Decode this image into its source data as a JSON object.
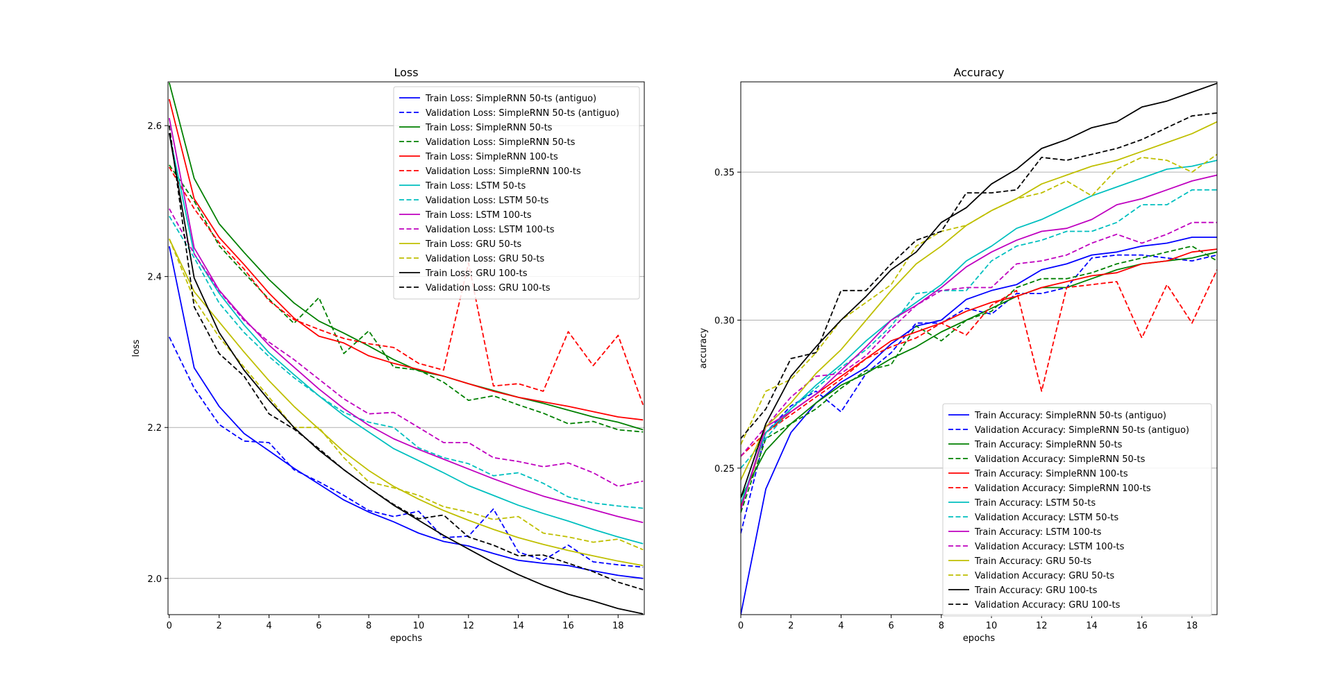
{
  "chart_data": [
    {
      "type": "line",
      "title": "Loss",
      "xlabel": "epochs",
      "ylabel": "loss",
      "xlim": [
        -0.05,
        19.05
      ],
      "ylim": [
        1.952,
        2.658
      ],
      "xticks": [
        0,
        2,
        4,
        6,
        8,
        10,
        12,
        14,
        16,
        18
      ],
      "yticks": [
        2.0,
        2.2,
        2.4,
        2.6
      ],
      "ytick_labels": [
        "2.0",
        "2.2",
        "2.4",
        "2.6"
      ],
      "grid": "y",
      "legend_position": "top-right",
      "x": [
        0,
        1,
        2,
        3,
        4,
        5,
        6,
        7,
        8,
        9,
        10,
        11,
        12,
        13,
        14,
        15,
        16,
        17,
        18,
        19
      ],
      "series": [
        {
          "name": "Train Loss: SimpleRNN 50-ts (antiguo)",
          "color": "#0000ff",
          "dash": "solid",
          "values": [
            2.44,
            2.279,
            2.228,
            2.192,
            2.169,
            2.146,
            2.125,
            2.104,
            2.088,
            2.075,
            2.06,
            2.049,
            2.043,
            2.033,
            2.024,
            2.02,
            2.017,
            2.01,
            2.004,
            2.0
          ]
        },
        {
          "name": "Validation Loss: SimpleRNN 50-ts (antiguo)",
          "color": "#0000ff",
          "dash": "dashed",
          "values": [
            2.32,
            2.252,
            2.204,
            2.182,
            2.18,
            2.144,
            2.128,
            2.11,
            2.09,
            2.082,
            2.089,
            2.054,
            2.056,
            2.092,
            2.035,
            2.024,
            2.044,
            2.022,
            2.018,
            2.015
          ]
        },
        {
          "name": "Train Loss: SimpleRNN 50-ts",
          "color": "#008000",
          "dash": "solid",
          "values": [
            2.657,
            2.53,
            2.47,
            2.432,
            2.396,
            2.365,
            2.341,
            2.325,
            2.308,
            2.29,
            2.275,
            2.268,
            2.258,
            2.249,
            2.24,
            2.232,
            2.223,
            2.214,
            2.207,
            2.197
          ]
        },
        {
          "name": "Validation Loss: SimpleRNN 50-ts",
          "color": "#008000",
          "dash": "dashed",
          "values": [
            2.548,
            2.5,
            2.441,
            2.405,
            2.37,
            2.338,
            2.372,
            2.298,
            2.328,
            2.28,
            2.276,
            2.26,
            2.236,
            2.242,
            2.23,
            2.219,
            2.205,
            2.208,
            2.197,
            2.194
          ]
        },
        {
          "name": "Train Loss: SimpleRNN 100-ts",
          "color": "#ff0000",
          "dash": "solid",
          "values": [
            2.635,
            2.503,
            2.452,
            2.416,
            2.378,
            2.345,
            2.321,
            2.312,
            2.295,
            2.285,
            2.277,
            2.268,
            2.258,
            2.248,
            2.24,
            2.234,
            2.228,
            2.221,
            2.214,
            2.21
          ]
        },
        {
          "name": "Validation Loss: SimpleRNN 100-ts",
          "color": "#ff0000",
          "dash": "dashed",
          "values": [
            2.545,
            2.49,
            2.445,
            2.41,
            2.368,
            2.343,
            2.33,
            2.318,
            2.311,
            2.306,
            2.285,
            2.276,
            2.418,
            2.255,
            2.258,
            2.248,
            2.327,
            2.282,
            2.322,
            2.23
          ]
        },
        {
          "name": "Train Loss: LSTM 50-ts",
          "color": "#00bfbf",
          "dash": "solid",
          "values": [
            2.59,
            2.43,
            2.378,
            2.336,
            2.299,
            2.27,
            2.242,
            2.216,
            2.194,
            2.172,
            2.156,
            2.14,
            2.123,
            2.11,
            2.097,
            2.086,
            2.076,
            2.065,
            2.055,
            2.046
          ]
        },
        {
          "name": "Validation Loss: LSTM 50-ts",
          "color": "#00bfbf",
          "dash": "dashed",
          "values": [
            2.48,
            2.425,
            2.365,
            2.326,
            2.294,
            2.266,
            2.242,
            2.22,
            2.207,
            2.2,
            2.173,
            2.16,
            2.152,
            2.136,
            2.14,
            2.126,
            2.108,
            2.1,
            2.096,
            2.093
          ]
        },
        {
          "name": "Train Loss: LSTM 100-ts",
          "color": "#bf00bf",
          "dash": "solid",
          "values": [
            2.61,
            2.438,
            2.382,
            2.344,
            2.309,
            2.28,
            2.251,
            2.225,
            2.203,
            2.185,
            2.171,
            2.158,
            2.145,
            2.132,
            2.12,
            2.109,
            2.1,
            2.091,
            2.082,
            2.074
          ]
        },
        {
          "name": "Validation Loss: LSTM 100-ts",
          "color": "#bf00bf",
          "dash": "dashed",
          "values": [
            2.49,
            2.43,
            2.381,
            2.342,
            2.313,
            2.29,
            2.264,
            2.238,
            2.218,
            2.22,
            2.2,
            2.18,
            2.18,
            2.16,
            2.155,
            2.148,
            2.153,
            2.14,
            2.122,
            2.129
          ]
        },
        {
          "name": "Train Loss: GRU 50-ts",
          "color": "#bfbf00",
          "dash": "solid",
          "values": [
            2.45,
            2.38,
            2.34,
            2.3,
            2.262,
            2.228,
            2.198,
            2.168,
            2.143,
            2.122,
            2.105,
            2.09,
            2.077,
            2.065,
            2.054,
            2.045,
            2.037,
            2.03,
            2.023,
            2.017
          ]
        },
        {
          "name": "Validation Loss: GRU 50-ts",
          "color": "#bfbf00",
          "dash": "dashed",
          "values": [
            2.45,
            2.37,
            2.32,
            2.28,
            2.24,
            2.2,
            2.2,
            2.16,
            2.128,
            2.12,
            2.11,
            2.095,
            2.088,
            2.078,
            2.082,
            2.06,
            2.055,
            2.048,
            2.052,
            2.038
          ]
        },
        {
          "name": "Train Loss: GRU 100-ts",
          "color": "#000000",
          "dash": "solid",
          "values": [
            2.59,
            2.398,
            2.326,
            2.276,
            2.236,
            2.2,
            2.17,
            2.144,
            2.12,
            2.097,
            2.077,
            2.057,
            2.039,
            2.021,
            2.005,
            1.991,
            1.979,
            1.97,
            1.96,
            1.953
          ]
        },
        {
          "name": "Validation Loss: GRU 100-ts",
          "color": "#000000",
          "dash": "dashed",
          "values": [
            2.6,
            2.36,
            2.298,
            2.268,
            2.218,
            2.198,
            2.172,
            2.144,
            2.12,
            2.098,
            2.079,
            2.084,
            2.055,
            2.044,
            2.03,
            2.031,
            2.02,
            2.009,
            1.995,
            1.985
          ]
        }
      ]
    },
    {
      "type": "line",
      "title": "Accuracy",
      "xlabel": "epochs",
      "ylabel": "accuracy",
      "xlim": [
        0,
        19
      ],
      "ylim": [
        0.2005,
        0.3805
      ],
      "xticks": [
        0,
        2,
        4,
        6,
        8,
        10,
        12,
        14,
        16,
        18
      ],
      "yticks": [
        0.25,
        0.3,
        0.35
      ],
      "ytick_labels": [
        "0.25",
        "0.30",
        "0.35"
      ],
      "grid": "y",
      "legend_position": "bottom-right",
      "x": [
        0,
        1,
        2,
        3,
        4,
        5,
        6,
        7,
        8,
        9,
        10,
        11,
        12,
        13,
        14,
        15,
        16,
        17,
        18,
        19
      ],
      "series": [
        {
          "name": "Train Accuracy: SimpleRNN 50-ts (antiguo)",
          "color": "#0000ff",
          "dash": "solid",
          "values": [
            0.2005,
            0.243,
            0.262,
            0.272,
            0.279,
            0.284,
            0.292,
            0.298,
            0.3,
            0.307,
            0.31,
            0.312,
            0.317,
            0.319,
            0.322,
            0.323,
            0.325,
            0.326,
            0.328,
            0.328
          ]
        },
        {
          "name": "Validation Accuracy: SimpleRNN 50-ts (antiguo)",
          "color": "#0000ff",
          "dash": "dashed",
          "values": [
            0.228,
            0.262,
            0.271,
            0.276,
            0.269,
            0.282,
            0.289,
            0.299,
            0.299,
            0.304,
            0.302,
            0.309,
            0.309,
            0.311,
            0.321,
            0.322,
            0.322,
            0.321,
            0.32,
            0.322
          ]
        },
        {
          "name": "Train Accuracy: SimpleRNN 50-ts",
          "color": "#008000",
          "dash": "solid",
          "values": [
            0.24,
            0.256,
            0.265,
            0.272,
            0.278,
            0.282,
            0.287,
            0.291,
            0.296,
            0.3,
            0.304,
            0.308,
            0.311,
            0.311,
            0.314,
            0.317,
            0.319,
            0.32,
            0.321,
            0.323
          ]
        },
        {
          "name": "Validation Accuracy: SimpleRNN 50-ts",
          "color": "#008000",
          "dash": "dashed",
          "values": [
            0.235,
            0.26,
            0.265,
            0.27,
            0.277,
            0.283,
            0.285,
            0.298,
            0.293,
            0.3,
            0.303,
            0.311,
            0.314,
            0.314,
            0.316,
            0.319,
            0.321,
            0.323,
            0.325,
            0.32
          ]
        },
        {
          "name": "Train Accuracy: SimpleRNN 100-ts",
          "color": "#ff0000",
          "dash": "solid",
          "values": [
            0.237,
            0.262,
            0.269,
            0.275,
            0.281,
            0.287,
            0.293,
            0.296,
            0.299,
            0.303,
            0.306,
            0.308,
            0.311,
            0.313,
            0.315,
            0.316,
            0.319,
            0.32,
            0.323,
            0.324
          ]
        },
        {
          "name": "Validation Accuracy: SimpleRNN 100-ts",
          "color": "#ff0000",
          "dash": "dashed",
          "values": [
            0.254,
            0.262,
            0.268,
            0.274,
            0.28,
            0.287,
            0.291,
            0.294,
            0.299,
            0.295,
            0.305,
            0.31,
            0.276,
            0.311,
            0.312,
            0.313,
            0.294,
            0.312,
            0.299,
            0.317
          ]
        },
        {
          "name": "Train Accuracy: LSTM 50-ts",
          "color": "#00bfbf",
          "dash": "solid",
          "values": [
            0.238,
            0.262,
            0.27,
            0.278,
            0.285,
            0.293,
            0.3,
            0.306,
            0.312,
            0.32,
            0.325,
            0.331,
            0.334,
            0.338,
            0.342,
            0.345,
            0.348,
            0.351,
            0.352,
            0.354
          ]
        },
        {
          "name": "Validation Accuracy: LSTM 50-ts",
          "color": "#00bfbf",
          "dash": "dashed",
          "values": [
            0.25,
            0.26,
            0.27,
            0.277,
            0.284,
            0.29,
            0.298,
            0.309,
            0.31,
            0.31,
            0.32,
            0.325,
            0.327,
            0.33,
            0.33,
            0.333,
            0.339,
            0.339,
            0.344,
            0.344
          ]
        },
        {
          "name": "Train Accuracy: LSTM 100-ts",
          "color": "#bf00bf",
          "dash": "solid",
          "values": [
            0.236,
            0.264,
            0.269,
            0.275,
            0.283,
            0.291,
            0.3,
            0.305,
            0.311,
            0.318,
            0.323,
            0.327,
            0.33,
            0.331,
            0.334,
            0.339,
            0.341,
            0.344,
            0.347,
            0.349
          ]
        },
        {
          "name": "Validation Accuracy: LSTM 100-ts",
          "color": "#bf00bf",
          "dash": "dashed",
          "values": [
            0.254,
            0.264,
            0.274,
            0.281,
            0.282,
            0.288,
            0.297,
            0.305,
            0.31,
            0.311,
            0.311,
            0.319,
            0.32,
            0.322,
            0.326,
            0.329,
            0.326,
            0.329,
            0.333,
            0.333
          ]
        },
        {
          "name": "Train Accuracy: GRU 50-ts",
          "color": "#bfbf00",
          "dash": "solid",
          "values": [
            0.246,
            0.264,
            0.272,
            0.282,
            0.29,
            0.3,
            0.31,
            0.319,
            0.325,
            0.332,
            0.337,
            0.341,
            0.346,
            0.349,
            0.352,
            0.354,
            0.357,
            0.36,
            0.363,
            0.367
          ]
        },
        {
          "name": "Validation Accuracy: GRU 50-ts",
          "color": "#bfbf00",
          "dash": "dashed",
          "values": [
            0.258,
            0.276,
            0.28,
            0.289,
            0.3,
            0.306,
            0.312,
            0.325,
            0.33,
            0.332,
            0.337,
            0.341,
            0.343,
            0.347,
            0.342,
            0.351,
            0.355,
            0.354,
            0.35,
            0.356
          ]
        },
        {
          "name": "Train Accuracy: GRU 100-ts",
          "color": "#000000",
          "dash": "solid",
          "values": [
            0.24,
            0.265,
            0.281,
            0.291,
            0.3,
            0.308,
            0.317,
            0.323,
            0.333,
            0.338,
            0.346,
            0.351,
            0.358,
            0.361,
            0.365,
            0.367,
            0.372,
            0.374,
            0.377,
            0.38
          ]
        },
        {
          "name": "Validation Accuracy: GRU 100-ts",
          "color": "#000000",
          "dash": "dashed",
          "values": [
            0.26,
            0.27,
            0.287,
            0.289,
            0.31,
            0.31,
            0.319,
            0.327,
            0.33,
            0.343,
            0.343,
            0.344,
            0.355,
            0.354,
            0.356,
            0.358,
            0.361,
            0.365,
            0.369,
            0.37
          ]
        }
      ]
    }
  ]
}
